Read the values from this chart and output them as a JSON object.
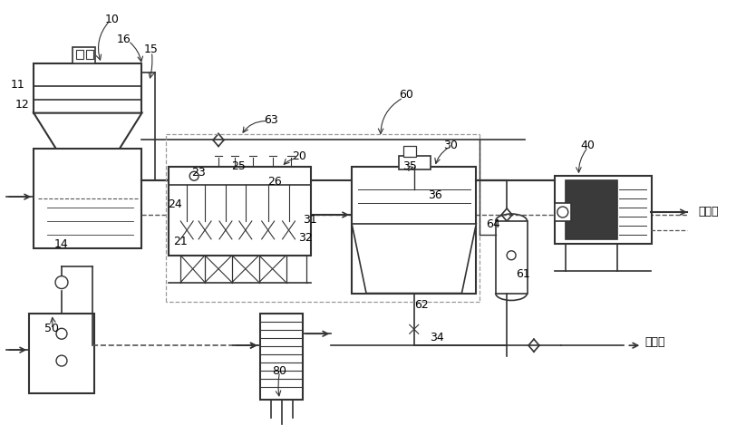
{
  "bg_color": "#ffffff",
  "line_color": "#333333",
  "dashed_color": "#555555"
}
